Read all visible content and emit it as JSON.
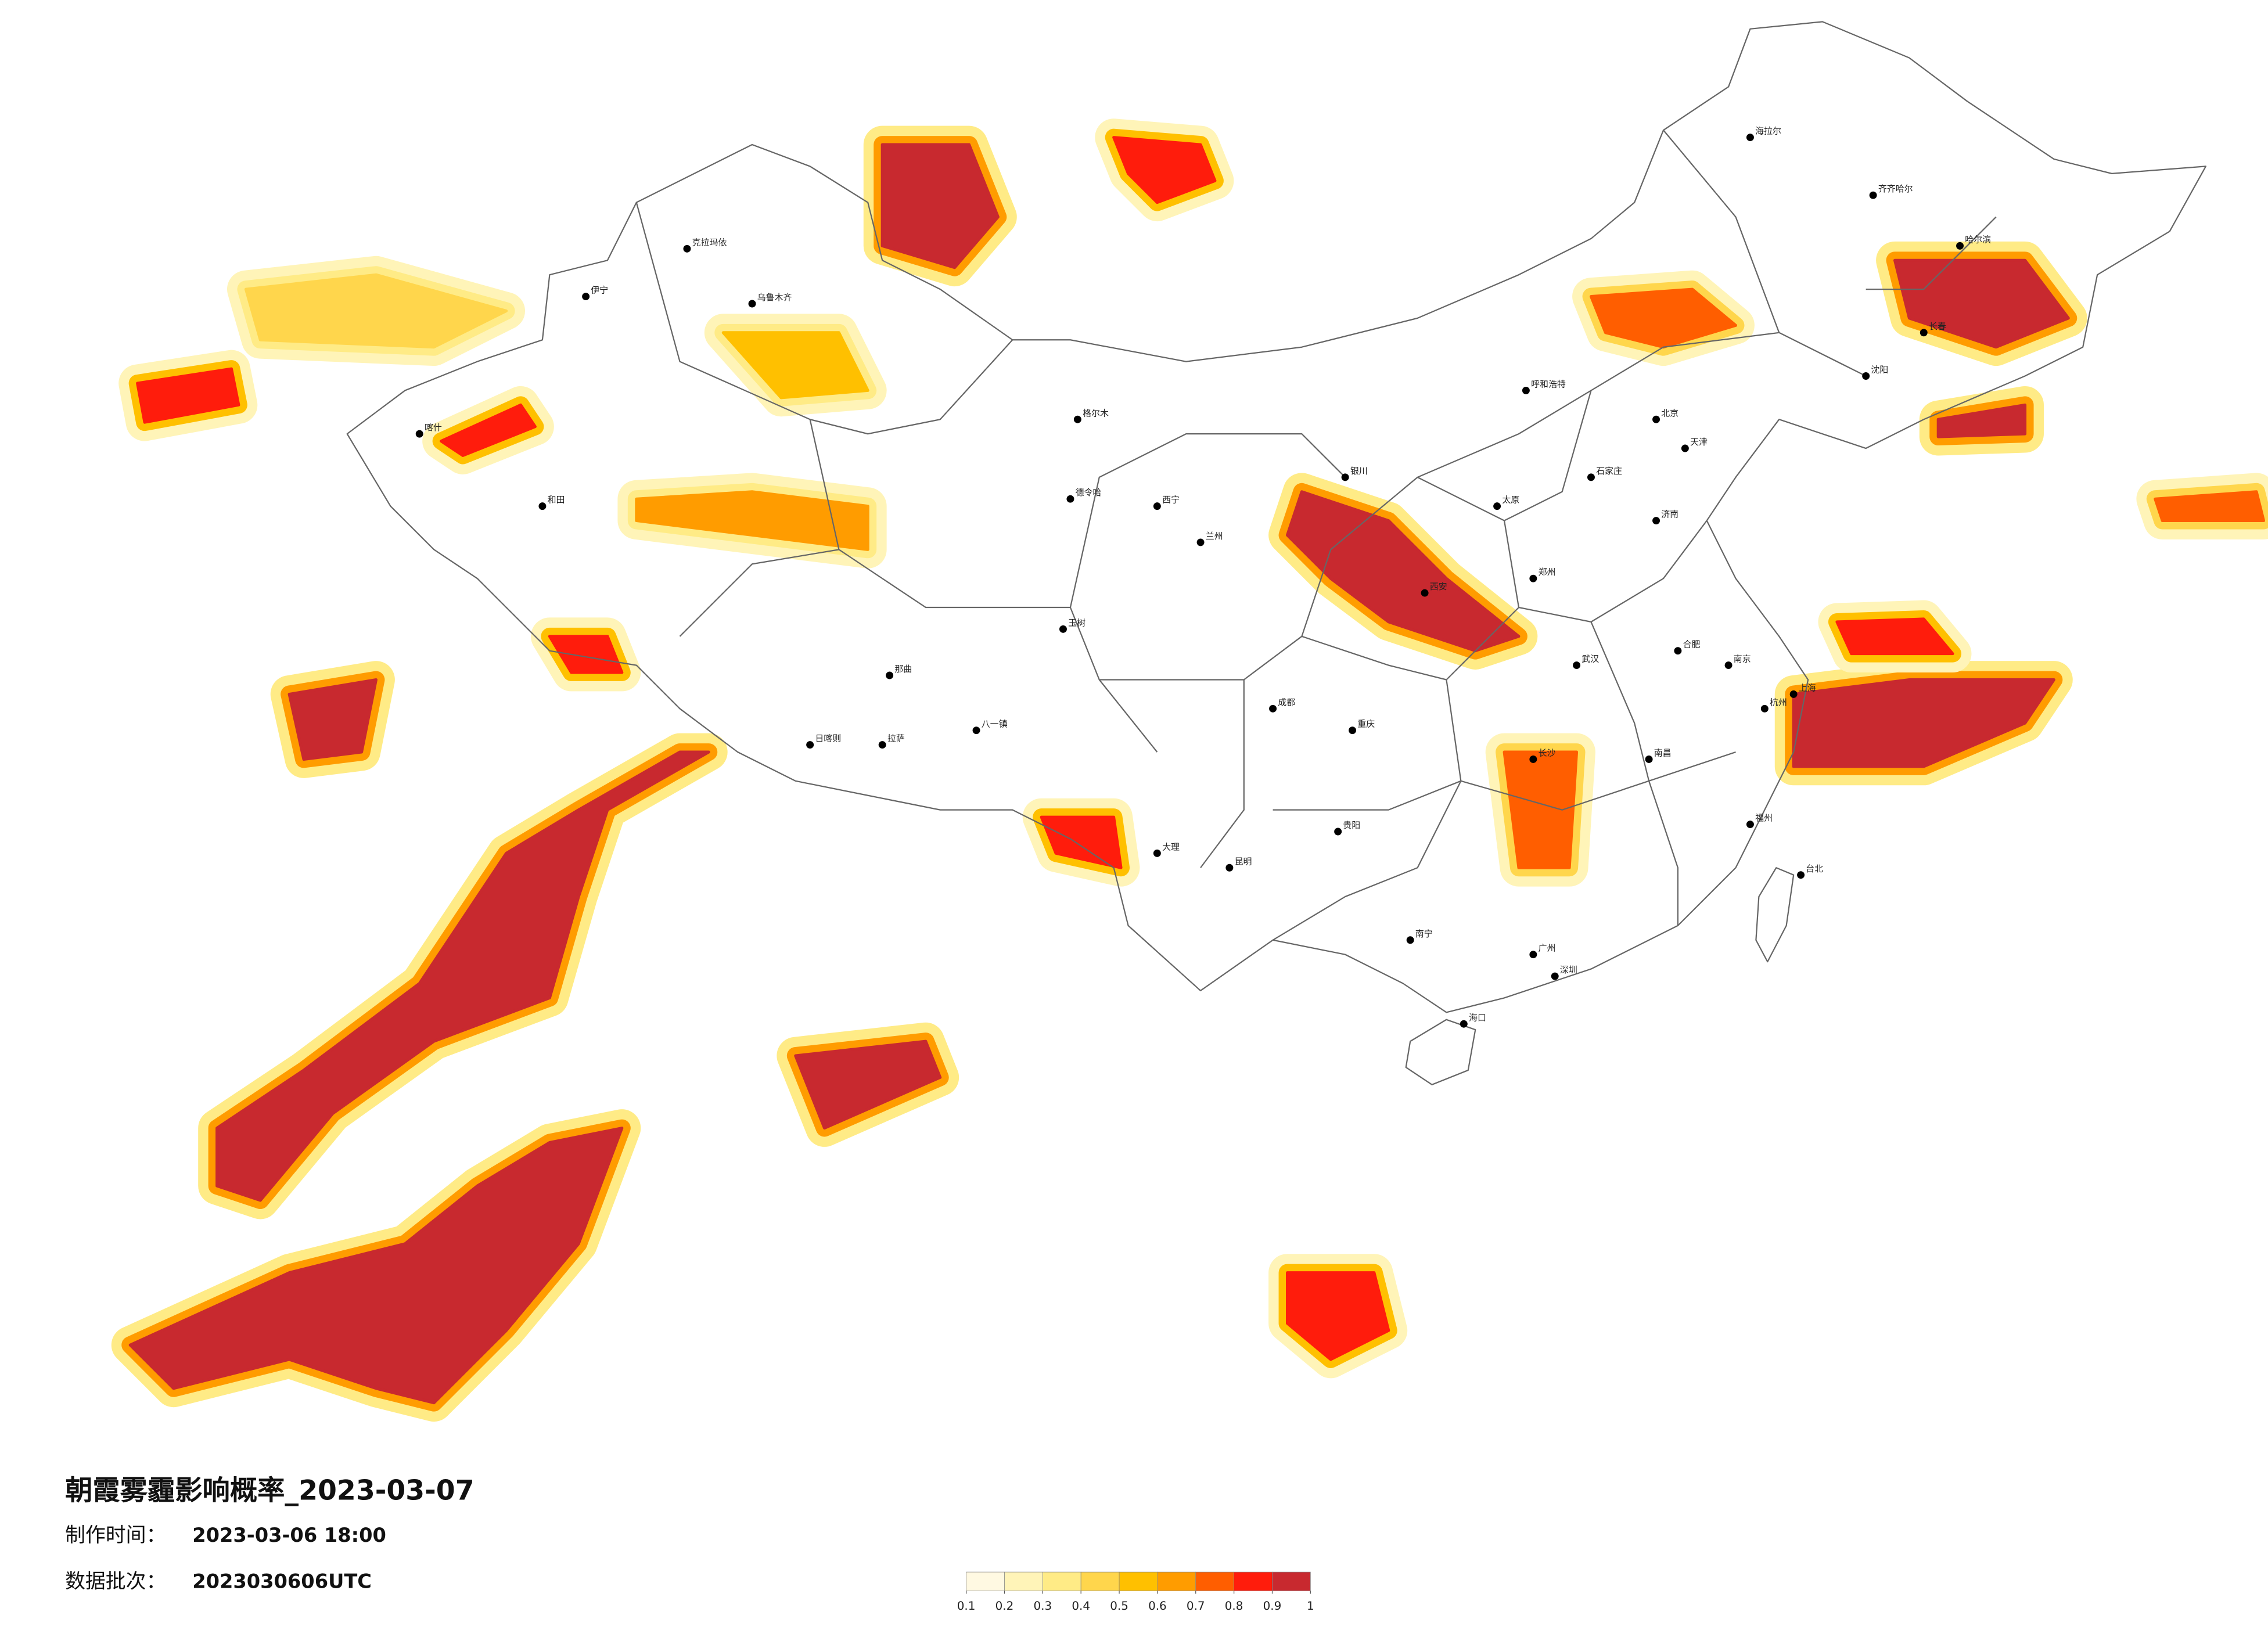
{
  "title": "朝霞雾霾影响概率_2023-03-07",
  "info": [
    {
      "label": "制作时间：",
      "value": "2023-03-06 18:00"
    },
    {
      "label": "数据批次：",
      "value": "2023030606UTC"
    }
  ],
  "colorbar": {
    "clim": [
      0.1,
      1
    ],
    "ticks": [
      0.1,
      0.2,
      0.3,
      0.4,
      0.5,
      0.6,
      0.7,
      0.8,
      0.9,
      1
    ],
    "colors": [
      "#fff9e2",
      "#fff4b8",
      "#ffeb86",
      "#ffd64c",
      "#ffc000",
      "#ff9c00",
      "#ff5e00",
      "#ff1c0c",
      "#c8292f"
    ]
  },
  "cities": [
    "北京",
    "天津",
    "上海",
    "广州",
    "深圳",
    "重庆",
    "成都",
    "武汉",
    "西安",
    "哈尔滨",
    "长春",
    "沈阳",
    "乌鲁木齐",
    "拉萨",
    "昆明",
    "南宁",
    "海口",
    "台北",
    "兰州",
    "西宁",
    "银川",
    "呼和浩特",
    "郑州",
    "济南",
    "南京",
    "杭州",
    "福州",
    "南昌",
    "长沙",
    "贵阳",
    "合肥",
    "太原",
    "石家庄",
    "和田",
    "喀什",
    "伊宁",
    "克拉玛依",
    "海拉尔",
    "齐齐哈尔",
    "大理",
    "格尔木",
    "德令哈",
    "日喀则",
    "八一镇",
    "那曲",
    "玉树"
  ]
}
